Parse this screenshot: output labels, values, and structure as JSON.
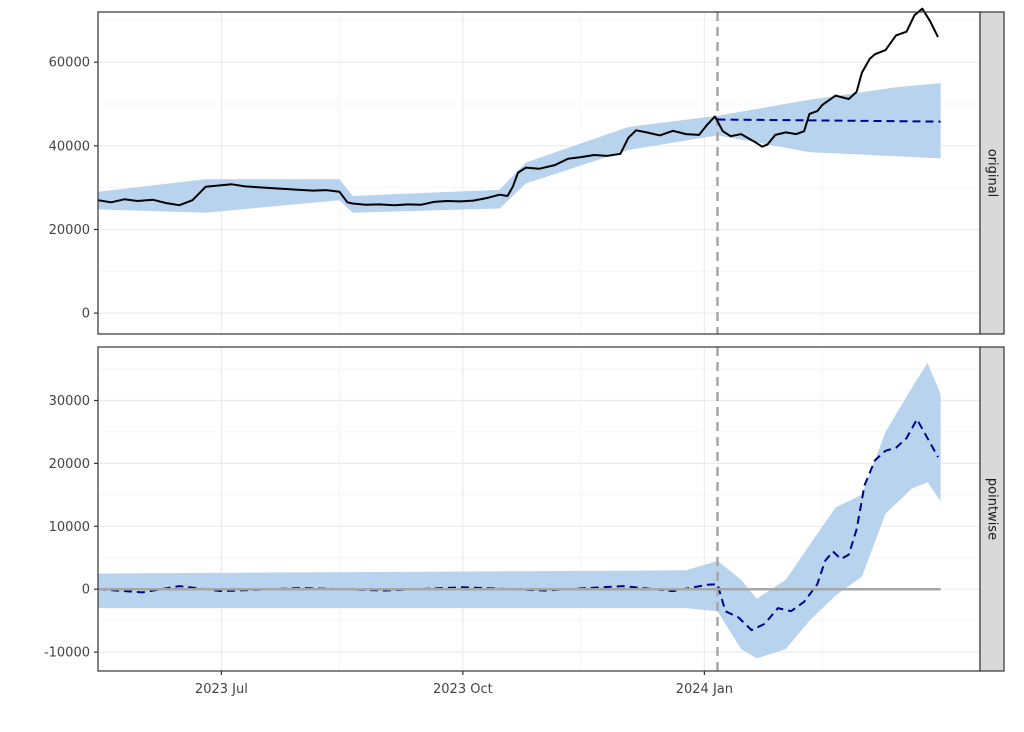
{
  "chart_data": [
    {
      "type": "line",
      "panel": "original",
      "strip_label": "original",
      "ylim": [
        -5000,
        72000
      ],
      "y_ticks": [
        0,
        20000,
        40000,
        60000
      ],
      "y_tick_labels": [
        "0",
        "20000",
        "40000",
        "60000"
      ],
      "intervention_date": "2024-01-06",
      "series": [
        {
          "style": "solid-black",
          "x": [
            "2023-05-15",
            "2023-05-20",
            "2023-05-25",
            "2023-05-30",
            "2023-06-05",
            "2023-06-10",
            "2023-06-15",
            "2023-06-20",
            "2023-06-25",
            "2023-06-30",
            "2023-07-05",
            "2023-07-10",
            "2023-07-15",
            "2023-07-20",
            "2023-07-25",
            "2023-07-30",
            "2023-08-05",
            "2023-08-10",
            "2023-08-15",
            "2023-08-18",
            "2023-08-20",
            "2023-08-25",
            "2023-08-30",
            "2023-09-05",
            "2023-09-10",
            "2023-09-15",
            "2023-09-20",
            "2023-09-25",
            "2023-09-30",
            "2023-10-05",
            "2023-10-10",
            "2023-10-15",
            "2023-10-18",
            "2023-10-20",
            "2023-10-22",
            "2023-10-25",
            "2023-10-30",
            "2023-11-05",
            "2023-11-10",
            "2023-11-15",
            "2023-11-20",
            "2023-11-25",
            "2023-11-30",
            "2023-12-03",
            "2023-12-06",
            "2023-12-10",
            "2023-12-15",
            "2023-12-20",
            "2023-12-25",
            "2023-12-30",
            "2024-01-02",
            "2024-01-05",
            "2024-01-08",
            "2024-01-11",
            "2024-01-15",
            "2024-01-20",
            "2024-01-23",
            "2024-01-25",
            "2024-01-28",
            "2024-02-01",
            "2024-02-05",
            "2024-02-08",
            "2024-02-10",
            "2024-02-13",
            "2024-02-15",
            "2024-02-20",
            "2024-02-25",
            "2024-02-28",
            "2024-03-01",
            "2024-03-04",
            "2024-03-06",
            "2024-03-10",
            "2024-03-14",
            "2024-03-18",
            "2024-03-21",
            "2024-03-24",
            "2024-03-27",
            "2024-03-30"
          ],
          "values": [
            27000,
            26500,
            27200,
            26800,
            27100,
            26300,
            25800,
            27000,
            30200,
            30500,
            30800,
            30300,
            30100,
            29900,
            29700,
            29500,
            29300,
            29400,
            29000,
            26500,
            26200,
            25900,
            26000,
            25800,
            26000,
            25900,
            26600,
            26800,
            26700,
            26900,
            27500,
            28300,
            28000,
            30200,
            33600,
            34800,
            34500,
            35400,
            36900,
            37300,
            37800,
            37600,
            38100,
            41900,
            43700,
            43200,
            42500,
            43600,
            42800,
            42600,
            45000,
            47000,
            43500,
            42300,
            42800,
            41000,
            39800,
            40300,
            42600,
            43200,
            42800,
            43500,
            47600,
            48300,
            49800,
            52000,
            51200,
            52900,
            57500,
            60800,
            61900,
            62900,
            66400,
            67300,
            71200,
            72800,
            69800,
            66000
          ]
        },
        {
          "style": "dashed-navy",
          "x": [
            "2024-01-06",
            "2024-03-31"
          ],
          "values": [
            46300,
            45800
          ]
        }
      ],
      "band": {
        "x": [
          "2023-05-15",
          "2023-06-25",
          "2023-08-15",
          "2023-08-20",
          "2023-10-15",
          "2023-10-25",
          "2023-12-03",
          "2024-01-06",
          "2024-02-10",
          "2024-03-14",
          "2024-03-31"
        ],
        "lower": [
          24800,
          24000,
          27000,
          24000,
          25000,
          31000,
          39000,
          42500,
          38500,
          37500,
          37000
        ],
        "upper": [
          29000,
          32000,
          32000,
          28000,
          29500,
          36000,
          44500,
          47200,
          51000,
          54000,
          55000
        ]
      }
    },
    {
      "type": "line",
      "panel": "pointwise",
      "strip_label": "pointwise",
      "ylim": [
        -13000,
        38500
      ],
      "y_ticks": [
        -10000,
        0,
        10000,
        20000,
        30000
      ],
      "y_tick_labels": [
        "-10000",
        "0",
        "10000",
        "20000",
        "30000"
      ],
      "intervention_date": "2024-01-06",
      "series": [
        {
          "style": "dashed-navy",
          "x": [
            "2023-05-15",
            "2023-06-01",
            "2023-06-15",
            "2023-07-01",
            "2023-08-01",
            "2023-09-01",
            "2023-10-01",
            "2023-11-01",
            "2023-12-01",
            "2023-12-20",
            "2024-01-02",
            "2024-01-06",
            "2024-01-09",
            "2024-01-14",
            "2024-01-19",
            "2024-01-24",
            "2024-01-29",
            "2024-02-03",
            "2024-02-08",
            "2024-02-13",
            "2024-02-16",
            "2024-02-19",
            "2024-02-22",
            "2024-02-25",
            "2024-02-28",
            "2024-03-02",
            "2024-03-06",
            "2024-03-10",
            "2024-03-14",
            "2024-03-18",
            "2024-03-22",
            "2024-03-26",
            "2024-03-30"
          ],
          "values": [
            0,
            -500,
            500,
            -300,
            200,
            -200,
            300,
            -200,
            500,
            -300,
            700,
            800,
            -3500,
            -4500,
            -6500,
            -5500,
            -3000,
            -3500,
            -2000,
            800,
            4500,
            6000,
            4800,
            5500,
            9500,
            16500,
            20500,
            22000,
            22500,
            24000,
            27000,
            24000,
            21000
          ]
        },
        {
          "style": "solid-gray",
          "x": [
            "2023-05-15",
            "2024-03-31"
          ],
          "values": [
            0,
            0
          ]
        }
      ],
      "band": {
        "x": [
          "2023-05-15",
          "2023-12-25",
          "2024-01-06",
          "2024-01-15",
          "2024-01-21",
          "2024-02-01",
          "2024-02-10",
          "2024-02-20",
          "2024-03-01",
          "2024-03-10",
          "2024-03-20",
          "2024-03-26",
          "2024-03-31"
        ],
        "lower": [
          -3000,
          -3000,
          -3500,
          -9500,
          -11000,
          -9500,
          -5000,
          -1000,
          2000,
          12000,
          16000,
          17000,
          14000
        ],
        "upper": [
          2500,
          3000,
          4500,
          1500,
          -1500,
          1500,
          7000,
          13000,
          15000,
          25000,
          32000,
          36000,
          31000
        ]
      }
    }
  ],
  "x_axis": {
    "ticks": [
      "2023-07-01",
      "2023-10-01",
      "2024-01-01"
    ],
    "tick_labels": [
      "2023 Jul",
      "2023 Oct",
      "2024 Jan"
    ],
    "minor_ticks": [
      "2023-05-15",
      "2023-08-15",
      "2023-11-15",
      "2024-02-15"
    ],
    "xlim": [
      "2023-05-15",
      "2024-04-15"
    ]
  },
  "colors": {
    "band": "#b8d3ee",
    "observed": "#000000",
    "prediction": "#00008b",
    "zero_line": "#a6a6a6",
    "intervention_line": "#a6a6a6",
    "strip_bg": "#d9d9d9",
    "grid_major": "#ebebeb",
    "grid_minor": "#f5f5f5"
  }
}
